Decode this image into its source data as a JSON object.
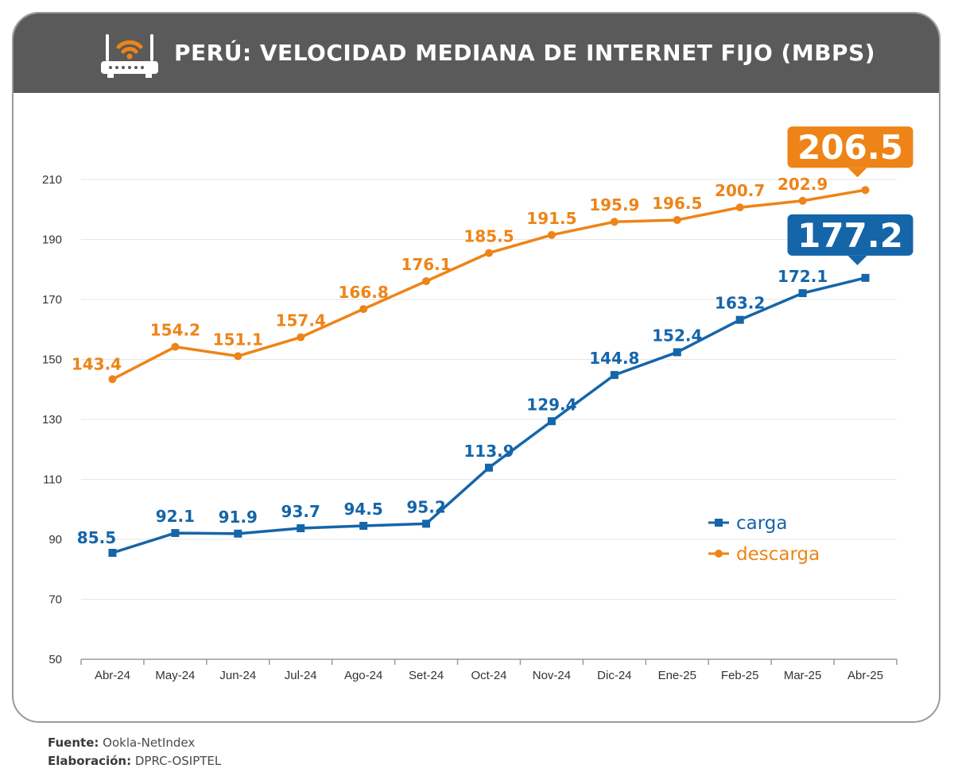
{
  "header": {
    "title": "PERÚ: VELOCIDAD MEDIANA DE INTERNET FIJO (MBPS)",
    "icon": "wifi-router-icon"
  },
  "colors": {
    "carga": "#1565a9",
    "descarga": "#ee8417",
    "header_bg": "#5a5a5a",
    "grid": "#e6e6e6"
  },
  "chart_data": {
    "type": "line",
    "categories": [
      "Abr-24",
      "May-24",
      "Jun-24",
      "Jul-24",
      "Ago-24",
      "Set-24",
      "Oct-24",
      "Nov-24",
      "Dic-24",
      "Ene-25",
      "Feb-25",
      "Mar-25",
      "Abr-25"
    ],
    "series": [
      {
        "name": "descarga",
        "marker": "circle",
        "values": [
          143.4,
          154.2,
          151.1,
          157.4,
          166.8,
          176.1,
          185.5,
          191.5,
          195.9,
          196.5,
          200.7,
          202.9,
          206.5
        ],
        "labels": [
          "143.4",
          "154.2",
          "151.1",
          "157.4",
          "166.8",
          "176.1",
          "185.5",
          "191.5",
          "195.9",
          "196.5",
          "200.7",
          "202.9",
          ""
        ],
        "callout": "206.5"
      },
      {
        "name": "carga",
        "marker": "square",
        "values": [
          85.5,
          92.1,
          91.9,
          93.7,
          94.5,
          95.2,
          113.9,
          129.4,
          144.8,
          152.4,
          163.2,
          172.1,
          177.2
        ],
        "labels": [
          "85.5",
          "92.1",
          "91.9",
          "93.7",
          "94.5",
          "95.2",
          "113.9",
          "129.4",
          "144.8",
          "152.4",
          "163.2",
          "172.1",
          ""
        ],
        "callout": "177.2"
      }
    ],
    "yticks": [
      "50",
      "70",
      "90",
      "110",
      "130",
      "150",
      "170",
      "190",
      "210"
    ],
    "ylim": [
      50,
      226
    ],
    "grid": true,
    "legend_position": "right"
  },
  "footer": {
    "source_label": "Fuente:",
    "source_value": "Ookla-NetIndex",
    "credit_label": "Elaboración:",
    "credit_value": "DPRC-OSIPTEL"
  }
}
